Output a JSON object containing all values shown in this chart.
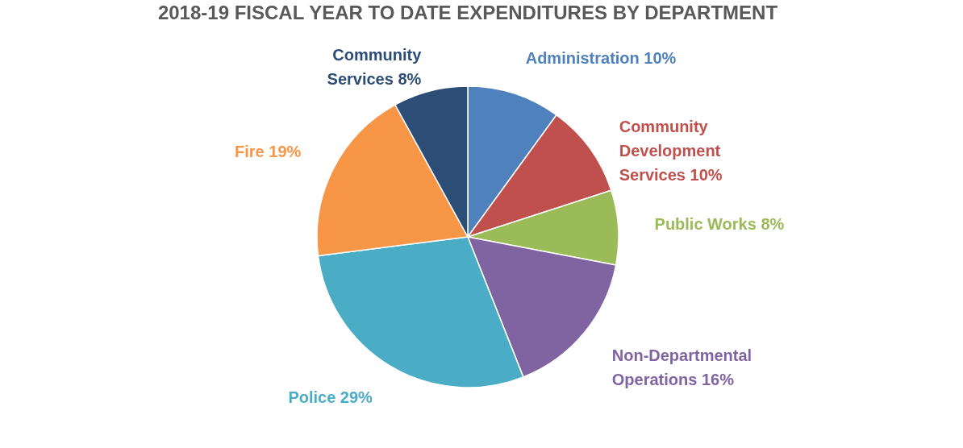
{
  "chart_data": {
    "type": "pie",
    "title": "2018-19 FISCAL YEAR TO DATE EXPENDITURES BY DEPARTMENT",
    "categories": [
      "Administration",
      "Community Development Services",
      "Public Works",
      "Non-Departmental Operations",
      "Police",
      "Fire",
      "Community Services"
    ],
    "values": [
      10,
      10,
      8,
      16,
      29,
      19,
      8
    ],
    "colors": [
      "#4f81bd",
      "#c0504d",
      "#9bbb59",
      "#8064a2",
      "#4bacc6",
      "#f79646",
      "#2c4d75"
    ],
    "value_labels": [
      "10%",
      "10%",
      "8%",
      "16%",
      "29%",
      "19%",
      "8%"
    ],
    "legend": false
  }
}
